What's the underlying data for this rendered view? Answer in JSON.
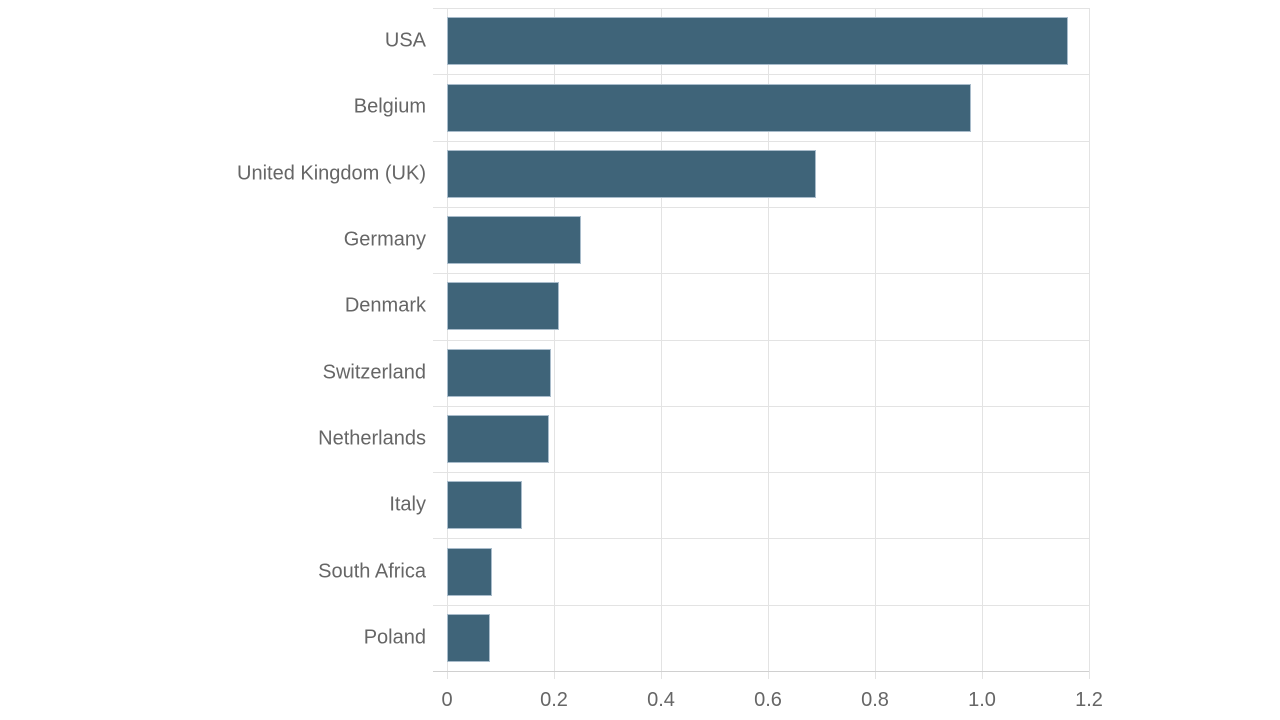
{
  "chart_data": {
    "type": "bar",
    "orientation": "horizontal",
    "title": "",
    "xlabel": "",
    "ylabel": "",
    "categories": [
      "USA",
      "Belgium",
      "United Kingdom (UK)",
      "Germany",
      "Denmark",
      "Switzerland",
      "Netherlands",
      "Italy",
      "South Africa",
      "Poland"
    ],
    "values": [
      1.16,
      0.98,
      0.69,
      0.25,
      0.21,
      0.195,
      0.19,
      0.14,
      0.085,
      0.08
    ],
    "xlim": [
      0,
      1.2
    ],
    "xticks": [
      "0",
      "0.2",
      "0.4",
      "0.6",
      "0.8",
      "1.0",
      "1.2"
    ],
    "grid": true,
    "legend": null,
    "bar_color": "#3f6479"
  }
}
